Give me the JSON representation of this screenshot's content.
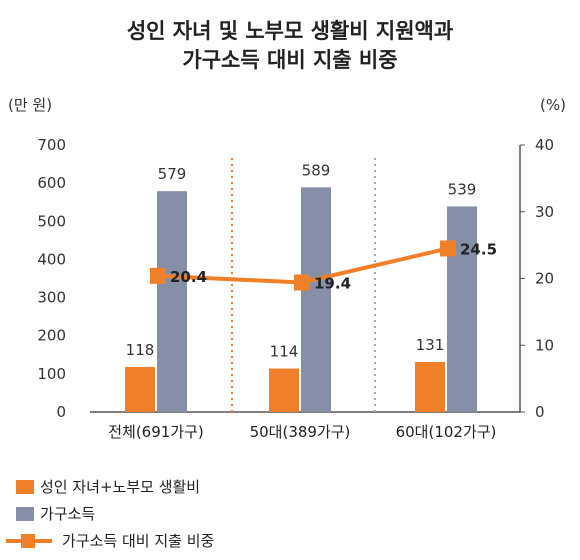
{
  "chart_data": {
    "type": "bar",
    "title_lines": [
      "성인 자녀 및 노부모 생활비 지원액과",
      "가구소득 대비 지출 비중"
    ],
    "left_unit": "(만 원)",
    "right_unit": "(%)",
    "categories": [
      "전체(691가구)",
      "50대(389가구)",
      "60대(102가구)"
    ],
    "left_axis": {
      "min": 0,
      "max": 700,
      "ticks": [
        0,
        100,
        200,
        300,
        400,
        500,
        600,
        700
      ]
    },
    "right_axis": {
      "min": 0,
      "max": 40,
      "ticks": [
        0,
        10,
        20,
        30,
        40
      ]
    },
    "series": [
      {
        "name": "성인 자녀+노부모 생활비",
        "type": "bar",
        "axis": "left",
        "color": "#f07f2a",
        "values": [
          118,
          114,
          131
        ]
      },
      {
        "name": "가구소득",
        "type": "bar",
        "axis": "left",
        "color": "#8590a8",
        "values": [
          579,
          589,
          539
        ]
      },
      {
        "name": "가구소득 대비 지출 비중",
        "type": "line",
        "axis": "right",
        "color": "#f07f2a",
        "values": [
          20.4,
          19.4,
          24.5
        ]
      }
    ],
    "separators": [
      {
        "style": "dotted",
        "color": "#f07f2a"
      },
      {
        "style": "dotted",
        "color": "#aaaaaa"
      }
    ],
    "grid": false,
    "legend_position": "bottom-left"
  }
}
